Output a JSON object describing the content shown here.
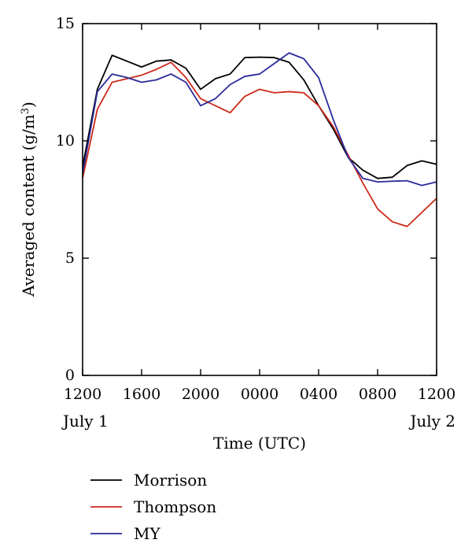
{
  "chart_data": {
    "type": "line",
    "title": "",
    "xlabel": "Time (UTC)",
    "ylabel": "Averaged content (g/m",
    "ylabel_superscript": "3",
    "ylabel_suffix": ")",
    "xlim": [
      0,
      24
    ],
    "ylim": [
      0,
      15
    ],
    "grid": false,
    "legend_position": "bottom-left",
    "x_ticks": [
      {
        "x": 0,
        "label": "1200"
      },
      {
        "x": 4,
        "label": "1600"
      },
      {
        "x": 8,
        "label": "2000"
      },
      {
        "x": 12,
        "label": "0000"
      },
      {
        "x": 16,
        "label": "0400"
      },
      {
        "x": 20,
        "label": "0800"
      },
      {
        "x": 24,
        "label": "1200"
      }
    ],
    "y_ticks": [
      {
        "y": 0,
        "label": "0"
      },
      {
        "y": 5,
        "label": "5"
      },
      {
        "y": 10,
        "label": "10"
      },
      {
        "y": 15,
        "label": "15"
      }
    ],
    "date_labels": [
      {
        "x": 0,
        "label": "July 1"
      },
      {
        "x": 24,
        "label": "July 2"
      }
    ],
    "series": [
      {
        "name": "Morrison",
        "color": "#000000",
        "points": [
          [
            0,
            8.9
          ],
          [
            1,
            12.2
          ],
          [
            2,
            13.65
          ],
          [
            3,
            13.4
          ],
          [
            4,
            13.15
          ],
          [
            5,
            13.4
          ],
          [
            6,
            13.45
          ],
          [
            7,
            13.1
          ],
          [
            8,
            12.2
          ],
          [
            9,
            12.65
          ],
          [
            10,
            12.85
          ],
          [
            11,
            13.55
          ],
          [
            12,
            13.57
          ],
          [
            13,
            13.55
          ],
          [
            14,
            13.35
          ],
          [
            15,
            12.6
          ],
          [
            16,
            11.5
          ],
          [
            17,
            10.5
          ],
          [
            18,
            9.3
          ],
          [
            19,
            8.75
          ],
          [
            20,
            8.4
          ],
          [
            21,
            8.45
          ],
          [
            22,
            8.95
          ],
          [
            23,
            9.15
          ],
          [
            24,
            9.0
          ]
        ]
      },
      {
        "name": "Thompson",
        "color": "#cc2a1a",
        "points": [
          [
            0,
            8.4
          ],
          [
            1,
            11.35
          ],
          [
            2,
            12.5
          ],
          [
            3,
            12.65
          ],
          [
            4,
            12.8
          ],
          [
            5,
            13.05
          ],
          [
            6,
            13.35
          ],
          [
            7,
            12.7
          ],
          [
            8,
            11.8
          ],
          [
            9,
            11.5
          ],
          [
            10,
            11.2
          ],
          [
            11,
            11.9
          ],
          [
            12,
            12.2
          ],
          [
            13,
            12.05
          ],
          [
            14,
            12.1
          ],
          [
            15,
            12.05
          ],
          [
            16,
            11.5
          ],
          [
            17,
            10.6
          ],
          [
            18,
            9.4
          ],
          [
            19,
            8.2
          ],
          [
            20,
            7.1
          ],
          [
            21,
            6.55
          ],
          [
            22,
            6.35
          ],
          [
            23,
            6.95
          ],
          [
            24,
            7.55
          ]
        ]
      },
      {
        "name": "MY",
        "color": "#2a2a9a",
        "points": [
          [
            0,
            8.6
          ],
          [
            1,
            12.1
          ],
          [
            2,
            12.85
          ],
          [
            3,
            12.7
          ],
          [
            4,
            12.5
          ],
          [
            5,
            12.6
          ],
          [
            6,
            12.85
          ],
          [
            7,
            12.5
          ],
          [
            8,
            11.5
          ],
          [
            9,
            11.8
          ],
          [
            10,
            12.4
          ],
          [
            11,
            12.75
          ],
          [
            12,
            12.85
          ],
          [
            13,
            13.3
          ],
          [
            14,
            13.75
          ],
          [
            15,
            13.5
          ],
          [
            16,
            12.7
          ],
          [
            17,
            10.9
          ],
          [
            18,
            9.3
          ],
          [
            19,
            8.4
          ],
          [
            20,
            8.25
          ],
          [
            21,
            8.28
          ],
          [
            22,
            8.3
          ],
          [
            23,
            8.1
          ],
          [
            24,
            8.25
          ]
        ]
      }
    ]
  }
}
